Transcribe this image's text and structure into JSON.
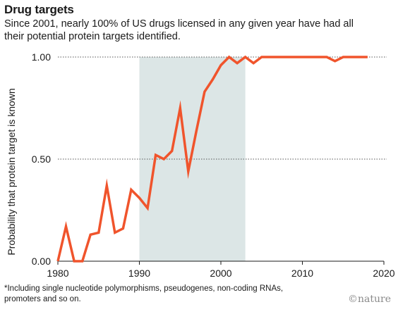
{
  "header": {
    "title": "Drug targets",
    "subtitle": "Since 2001, nearly 100% of US drugs licensed in any given year have had all their potential protein targets identified."
  },
  "footer": {
    "footnote": "*Including single nucleotide polymorphisms, pseudogenes, non-coding RNAs, promoters and so on.",
    "credit": "©nature"
  },
  "chart_data": {
    "type": "line",
    "title": "Drug targets",
    "xlabel": "",
    "ylabel": "Probability that protein target is known",
    "xlim": [
      1980,
      2020
    ],
    "ylim": [
      0,
      1
    ],
    "x_ticks": [
      1980,
      1990,
      2000,
      2010,
      2020
    ],
    "y_ticks": [
      {
        "value": 0,
        "label": "0.00"
      },
      {
        "value": 0.5,
        "label": "0.50"
      },
      {
        "value": 1,
        "label": "1.00"
      }
    ],
    "grid": "horizontal dotted",
    "shaded_region": [
      1990,
      2003
    ],
    "colors": {
      "line": "#f0542c",
      "shade": "#dce6e6",
      "grid": "#555555",
      "axis": "#1a1a1a"
    },
    "series": [
      {
        "x": [
          1980,
          1981,
          1982,
          1983,
          1984,
          1985,
          1986,
          1987,
          1988,
          1989,
          1990,
          1991,
          1992,
          1993,
          1994,
          1995,
          1996,
          1997,
          1998,
          1999,
          2000,
          2001,
          2002,
          2003,
          2004,
          2005,
          2006,
          2007,
          2008,
          2009,
          2010,
          2011,
          2012,
          2013,
          2014,
          2015,
          2016,
          2017,
          2018
        ],
        "values": [
          0.0,
          0.17,
          0.0,
          0.0,
          0.13,
          0.14,
          0.37,
          0.14,
          0.16,
          0.35,
          0.31,
          0.26,
          0.52,
          0.5,
          0.54,
          0.75,
          0.44,
          0.64,
          0.83,
          0.89,
          0.96,
          1.0,
          0.97,
          1.0,
          0.97,
          1.0,
          1.0,
          1.0,
          1.0,
          1.0,
          1.0,
          1.0,
          1.0,
          1.0,
          0.98,
          1.0,
          1.0,
          1.0,
          1.0
        ]
      }
    ]
  }
}
